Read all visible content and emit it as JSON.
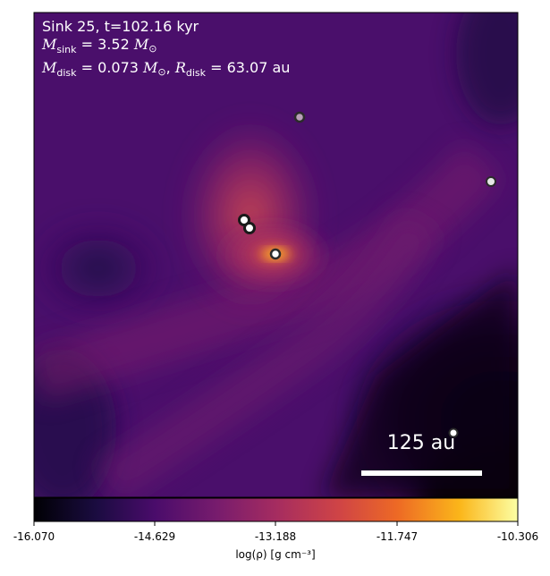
{
  "annotation": {
    "line1": "Sink 25, t=102.16 kyr",
    "sink_mass_sub": "sink",
    "sink_mass_value": "3.52",
    "disk_mass_sub": "disk",
    "disk_mass_value": "0.073",
    "disk_radius_sub": "disk",
    "disk_radius_value": "63.07",
    "radius_unit": "au"
  },
  "scalebar": {
    "label": "125 au"
  },
  "colorbar": {
    "label": "log(ρ) [g cm⁻³]",
    "ticks": [
      "-16.070",
      "-14.629",
      "-13.188",
      "-11.747",
      "-10.306"
    ],
    "min": -16.07,
    "max": -10.306,
    "colormap": "inferno"
  },
  "sinks": [
    {
      "id": "sink-upper",
      "fill": "#b9a0b8"
    },
    {
      "id": "sink-right",
      "fill": "#e6e6e6"
    },
    {
      "id": "sink-pair-a",
      "fill": "#ffffff"
    },
    {
      "id": "sink-pair-b",
      "fill": "#ffffff"
    },
    {
      "id": "sink-center",
      "fill": "#ffffff"
    },
    {
      "id": "sink-lower-right",
      "fill": "#ffffff"
    }
  ]
}
